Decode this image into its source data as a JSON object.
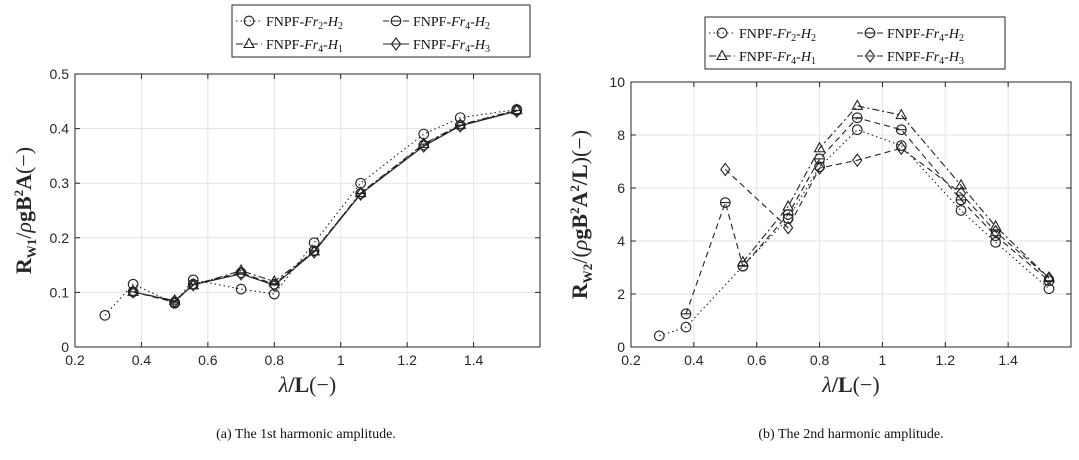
{
  "chart_data": [
    {
      "type": "line",
      "xlabel": "λ/L(−)",
      "ylabel": "R_W1/ρgB²A(−)",
      "xlim": [
        0.2,
        1.6
      ],
      "ylim": [
        0,
        0.5
      ],
      "xticks": [
        "0.2",
        "0.4",
        "0.6",
        "0.8",
        "1",
        "1.2",
        "1.4"
      ],
      "yticks": [
        "0",
        "0.1",
        "0.2",
        "0.3",
        "0.4",
        "0.5"
      ],
      "grid": true,
      "legend_position": "top",
      "caption": "(a) The 1st harmonic amplitude.",
      "series": [
        {
          "name": "FNPF-Fr2-H2",
          "marker": "circle",
          "dash": "dotted",
          "x": [
            0.29,
            0.375,
            0.5,
            0.556,
            0.7,
            0.8,
            0.92,
            1.06,
            1.25,
            1.36,
            1.53
          ],
          "y": [
            0.058,
            0.115,
            0.08,
            0.123,
            0.106,
            0.097,
            0.191,
            0.3,
            0.39,
            0.42,
            0.435
          ]
        },
        {
          "name": "FNPF-Fr4-H2",
          "marker": "circle-bar",
          "dash": "dashed",
          "x": [
            0.375,
            0.5,
            0.556,
            0.7,
            0.8,
            0.92,
            1.06,
            1.25,
            1.36,
            1.53
          ],
          "y": [
            0.101,
            0.082,
            0.115,
            0.136,
            0.115,
            0.176,
            0.281,
            0.37,
            0.406,
            0.433
          ]
        },
        {
          "name": "FNPF-Fr4-H1",
          "marker": "triangle",
          "dash": "dashdot",
          "x": [
            0.375,
            0.5,
            0.556,
            0.7,
            0.8,
            0.92,
            1.06,
            1.25,
            1.36,
            1.53
          ],
          "y": [
            0.101,
            0.085,
            0.113,
            0.14,
            0.12,
            0.175,
            0.282,
            0.372,
            0.407,
            0.434
          ]
        },
        {
          "name": "FNPF-Fr4-H3",
          "marker": "diamond",
          "dash": "solid",
          "x": [
            0.375,
            0.5,
            0.556,
            0.7,
            0.8,
            0.92,
            1.06,
            1.25,
            1.36,
            1.53
          ],
          "y": [
            0.101,
            0.084,
            0.114,
            0.134,
            0.113,
            0.174,
            0.28,
            0.368,
            0.405,
            0.432
          ]
        }
      ]
    },
    {
      "type": "line",
      "xlabel": "λ/L(−)",
      "ylabel": "R_W2/(ρgB²A²/L)(−)",
      "xlim": [
        0.2,
        1.6
      ],
      "ylim": [
        0,
        10
      ],
      "xticks": [
        "0.2",
        "0.4",
        "0.6",
        "0.8",
        "1",
        "1.2",
        "1.4"
      ],
      "yticks": [
        "0",
        "2",
        "4",
        "6",
        "8",
        "10"
      ],
      "grid": true,
      "legend_position": "top",
      "caption": "(b) The 2nd harmonic amplitude.",
      "series": [
        {
          "name": "FNPF-Fr2-H2",
          "marker": "circle",
          "dash": "dotted",
          "x": [
            0.29,
            0.375,
            0.556,
            0.7,
            0.8,
            0.92,
            1.06,
            1.25,
            1.36,
            1.53
          ],
          "y": [
            0.42,
            0.75,
            3.05,
            4.85,
            6.8,
            8.2,
            7.6,
            5.15,
            3.95,
            2.2
          ]
        },
        {
          "name": "FNPF-Fr4-H2",
          "marker": "circle-bar",
          "dash": "dashed",
          "x": [
            0.375,
            0.5,
            0.556,
            0.7,
            0.8,
            0.92,
            1.06,
            1.25,
            1.36,
            1.53
          ],
          "y": [
            1.25,
            5.45,
            3.05,
            5.0,
            7.1,
            8.65,
            8.2,
            5.55,
            4.2,
            2.5
          ]
        },
        {
          "name": "FNPF-Fr4-H1",
          "marker": "triangle",
          "dash": "dashdot",
          "x": [
            0.556,
            0.7,
            0.8,
            0.92,
            1.06,
            1.25,
            1.36,
            1.53
          ],
          "y": [
            3.2,
            5.3,
            7.5,
            9.1,
            8.75,
            6.1,
            4.55,
            2.6
          ]
        },
        {
          "name": "FNPF-Fr4-H3",
          "marker": "diamond",
          "dash": "dashed",
          "x": [
            0.5,
            0.7,
            0.8,
            0.92,
            1.06,
            1.25,
            1.36,
            1.53
          ],
          "y": [
            6.7,
            4.5,
            6.75,
            7.05,
            7.5,
            5.8,
            4.35,
            2.6
          ]
        }
      ]
    }
  ]
}
